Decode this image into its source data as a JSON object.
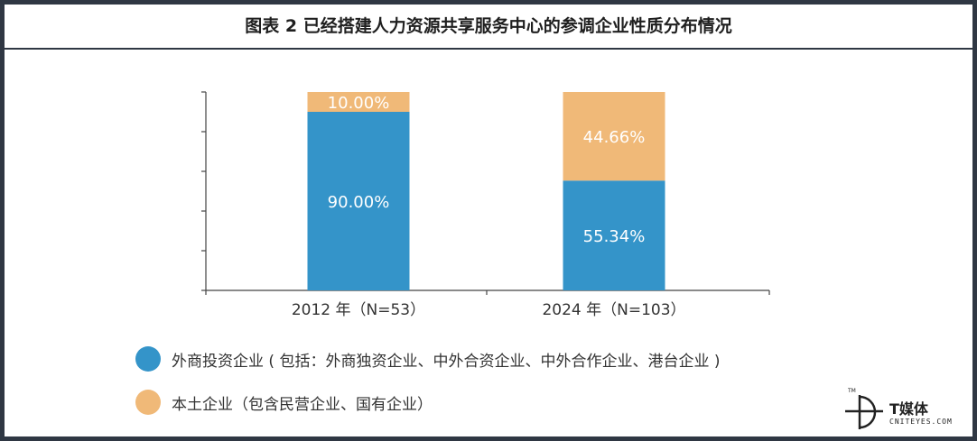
{
  "title": "图表 2 已经搭建人力资源共享服务中心的参调企业性质分布情况",
  "chart_data": {
    "type": "bar",
    "stacked": true,
    "percent_stacked": true,
    "categories": [
      "2012 年（N=53）",
      "2024 年（N=103）"
    ],
    "series": [
      {
        "name": "外商投资企业 ( 包括：外商独资企业、中外合资企业、中外合作企业、港台企业 )",
        "values": [
          90.0,
          55.34
        ],
        "labels": [
          "90.00%",
          "55.34%"
        ],
        "color": "#3494c9"
      },
      {
        "name": "本土企业（包含民营企业、国有企业）",
        "values": [
          10.0,
          44.66
        ],
        "labels": [
          "10.00%",
          "44.66%"
        ],
        "color": "#f0b978"
      }
    ],
    "ylim": [
      0,
      100
    ],
    "grid": false,
    "legend": "bottom-left"
  },
  "logo": {
    "name": "T媒体",
    "sub": "CNITEYES.COM",
    "mark": "TM"
  }
}
